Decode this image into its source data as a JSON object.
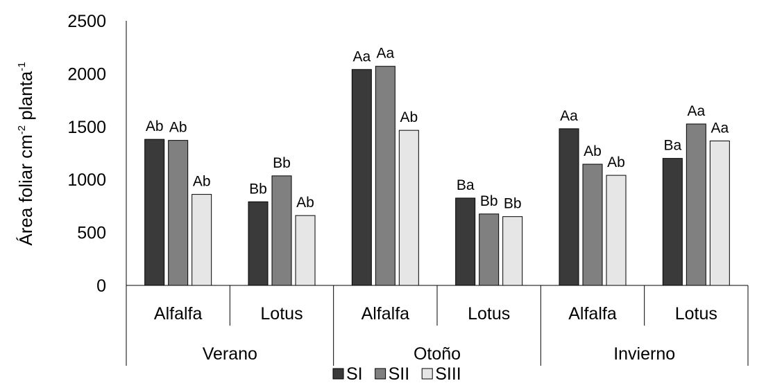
{
  "chart_data": {
    "type": "bar",
    "ylabel_parts": [
      {
        "text": "Área foliar cm",
        "sup": false
      },
      {
        "text": "-2",
        "sup": true
      },
      {
        "text": " planta",
        "sup": false
      },
      {
        "text": "-1",
        "sup": true
      }
    ],
    "ylim": [
      0,
      2500
    ],
    "yticks": [
      0,
      500,
      1000,
      1500,
      2000,
      2500
    ],
    "seasons": [
      "Verano",
      "Otoño",
      "Invierno"
    ],
    "categories": [
      {
        "season": "Verano",
        "crop": "Alfalfa"
      },
      {
        "season": "Verano",
        "crop": "Lotus"
      },
      {
        "season": "Otoño",
        "crop": "Alfalfa"
      },
      {
        "season": "Otoño",
        "crop": "Lotus"
      },
      {
        "season": "Invierno",
        "crop": "Alfalfa"
      },
      {
        "season": "Invierno",
        "crop": "Lotus"
      }
    ],
    "series": [
      {
        "name": "SI",
        "color": "#3a3a3a",
        "values": [
          1380,
          790,
          2040,
          825,
          1480,
          1200
        ],
        "labels": [
          "Ab",
          "Bb",
          "Aa",
          "Ba",
          "Aa",
          "Ba"
        ]
      },
      {
        "name": "SII",
        "color": "#808080",
        "values": [
          1370,
          1035,
          2070,
          675,
          1145,
          1525
        ],
        "labels": [
          "Ab",
          "Bb",
          "Aa",
          "Bb",
          "Ab",
          "Aa"
        ]
      },
      {
        "name": "SIII",
        "color": "#e6e6e6",
        "values": [
          860,
          660,
          1465,
          650,
          1040,
          1365
        ],
        "labels": [
          "Ab",
          "Ab",
          "Ab",
          "Bb",
          "Ab",
          "Aa"
        ]
      }
    ],
    "legend_position": "bottom",
    "grid": false
  }
}
